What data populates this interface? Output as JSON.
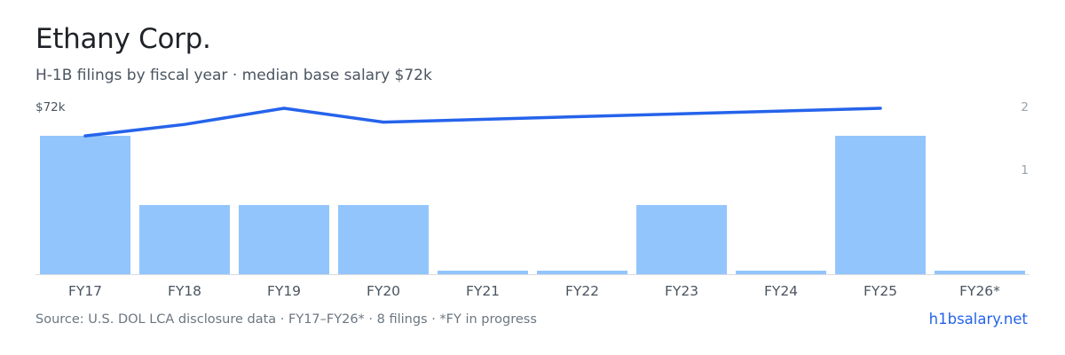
{
  "header": {
    "title": "Ethany Corp.",
    "subtitle": "H-1B filings by fiscal year · median base salary $72k"
  },
  "footer": {
    "source": "Source: U.S. DOL LCA disclosure data · FY17–FY26* · 8 filings · *FY in progress",
    "link": "h1bsalary.net"
  },
  "colors": {
    "bar": "#93c5fd",
    "line": "#2563eb",
    "axis_text": "#4a5560",
    "right_axis_text": "#9aa3ab",
    "axis_line": "#d7dce1"
  },
  "chart_data": {
    "type": "bar",
    "categories": [
      "FY17",
      "FY18",
      "FY19",
      "FY20",
      "FY21",
      "FY22",
      "FY23",
      "FY24",
      "FY25",
      "FY26*"
    ],
    "series": [
      {
        "type": "bar",
        "axis": "right",
        "values": [
          2,
          1,
          1,
          1,
          0,
          0,
          1,
          0,
          2,
          0
        ]
      },
      {
        "type": "line",
        "axis": "left",
        "points": [
          {
            "category": "FY17",
            "value": 60
          },
          {
            "category": "FY18",
            "value": 65
          },
          {
            "category": "FY19",
            "value": 72
          },
          {
            "category": "FY20",
            "value": 66
          },
          {
            "category": "FY25",
            "value": 72
          }
        ]
      }
    ],
    "left_axis": {
      "label": "$72k",
      "max_k": 72
    },
    "right_axis": {
      "ticks": [
        "2",
        "1"
      ],
      "max": 2
    },
    "grid": false,
    "legend": "none"
  }
}
